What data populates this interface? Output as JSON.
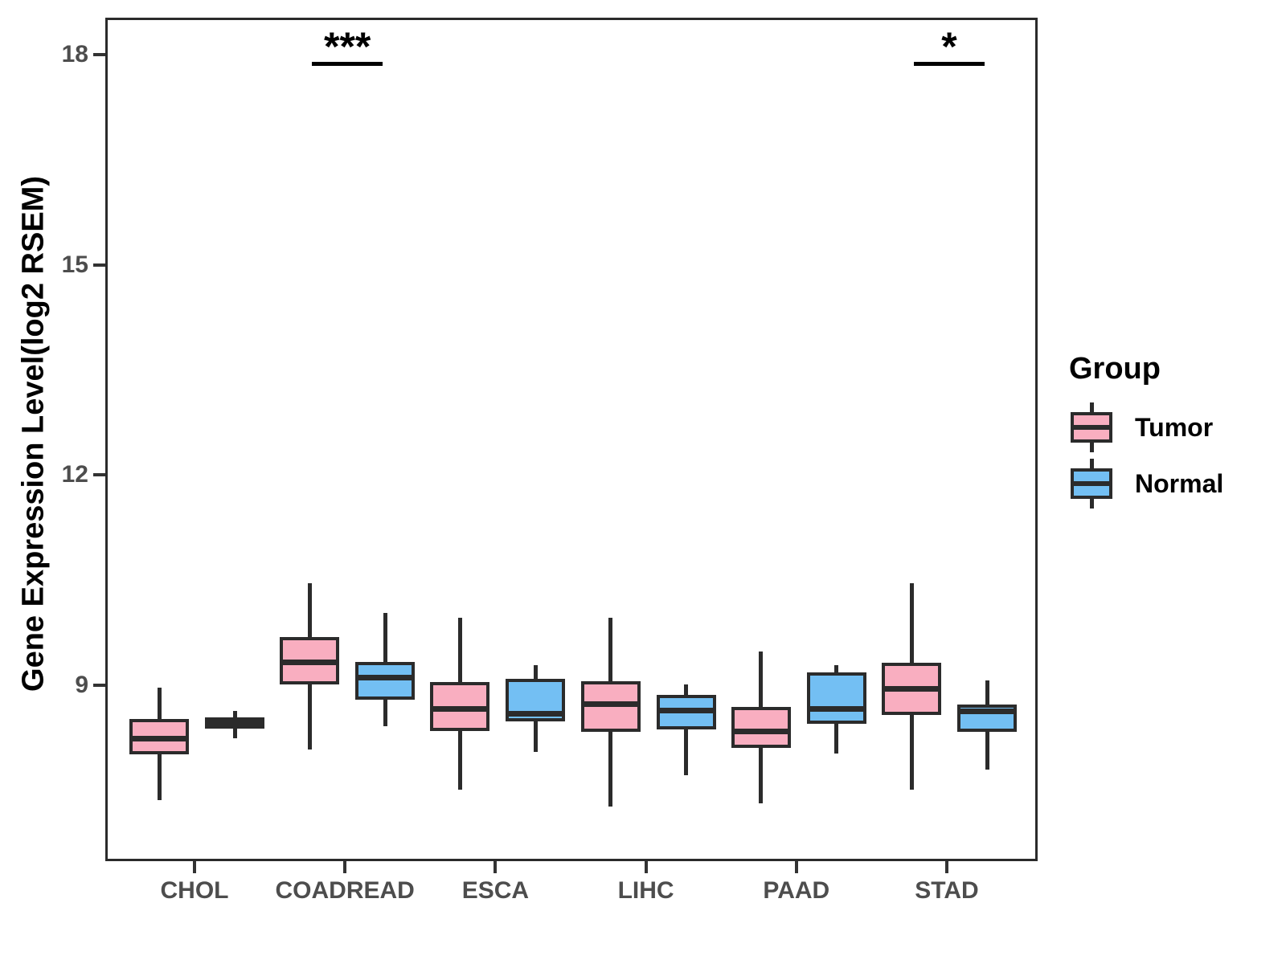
{
  "figure": {
    "background_color": "#ffffff",
    "panel_border_color": "#2b2b2b",
    "axis_text_color": "#4d4d4d",
    "box_outline_color": "#2b2b2b"
  },
  "y_axis": {
    "title": "Gene Expression Level(log2 RSEM)",
    "tick_labels": [
      "9",
      "12",
      "15",
      "18"
    ],
    "tick_values": [
      9,
      12,
      15,
      18
    ]
  },
  "legend": {
    "title": "Group",
    "items": [
      {
        "label": "Tumor",
        "color": "#f9aec0"
      },
      {
        "label": "Normal",
        "color": "#73bff3"
      }
    ]
  },
  "chart_data": {
    "type": "grouped_boxplot",
    "title": "",
    "xlabel": "",
    "ylabel": "Gene Expression Level(log2 RSEM)",
    "categories": [
      "CHOL",
      "COADREAD",
      "ESCA",
      "LIHC",
      "PAAD",
      "STAD"
    ],
    "y_range": [
      6.49,
      18.53
    ],
    "y_ticks": [
      9,
      12,
      15,
      18
    ],
    "grid": false,
    "legend_position": "right",
    "series": [
      {
        "name": "Tumor",
        "color": "#f9aec0",
        "boxes": [
          {
            "category": "CHOL",
            "whisker_low": 7.4,
            "q1": 8.05,
            "median": 8.27,
            "q3": 8.55,
            "whisker_high": 9.0
          },
          {
            "category": "COADREAD",
            "whisker_low": 8.12,
            "q1": 9.05,
            "median": 9.36,
            "q3": 9.72,
            "whisker_high": 10.49
          },
          {
            "category": "ESCA",
            "whisker_low": 7.55,
            "q1": 8.38,
            "median": 8.7,
            "q3": 9.08,
            "whisker_high": 10.0
          },
          {
            "category": "LIHC",
            "whisker_low": 7.3,
            "q1": 8.37,
            "median": 8.77,
            "q3": 9.09,
            "whisker_high": 10.0
          },
          {
            "category": "PAAD",
            "whisker_low": 7.35,
            "q1": 8.14,
            "median": 8.38,
            "q3": 8.73,
            "whisker_high": 9.52
          },
          {
            "category": "STAD",
            "whisker_low": 7.55,
            "q1": 8.61,
            "median": 8.98,
            "q3": 9.36,
            "whisker_high": 10.49
          }
        ]
      },
      {
        "name": "Normal",
        "color": "#73bff3",
        "boxes": [
          {
            "category": "CHOL",
            "whisker_low": 8.28,
            "q1": 8.42,
            "median": 8.5,
            "q3": 8.58,
            "whisker_high": 8.67
          },
          {
            "category": "COADREAD",
            "whisker_low": 8.45,
            "q1": 8.83,
            "median": 9.15,
            "q3": 9.37,
            "whisker_high": 10.07
          },
          {
            "category": "ESCA",
            "whisker_low": 8.08,
            "q1": 8.52,
            "median": 8.63,
            "q3": 9.13,
            "whisker_high": 9.32
          },
          {
            "category": "LIHC",
            "whisker_low": 7.75,
            "q1": 8.4,
            "median": 8.67,
            "q3": 8.9,
            "whisker_high": 9.05
          },
          {
            "category": "PAAD",
            "whisker_low": 8.06,
            "q1": 8.48,
            "median": 8.7,
            "q3": 9.22,
            "whisker_high": 9.32
          },
          {
            "category": "STAD",
            "whisker_low": 7.83,
            "q1": 8.37,
            "median": 8.66,
            "q3": 8.76,
            "whisker_high": 9.11
          }
        ]
      }
    ],
    "annotations": [
      {
        "category": "COADREAD",
        "label": "***",
        "y": 17.93
      },
      {
        "category": "STAD",
        "label": "*",
        "y": 17.93
      }
    ]
  }
}
